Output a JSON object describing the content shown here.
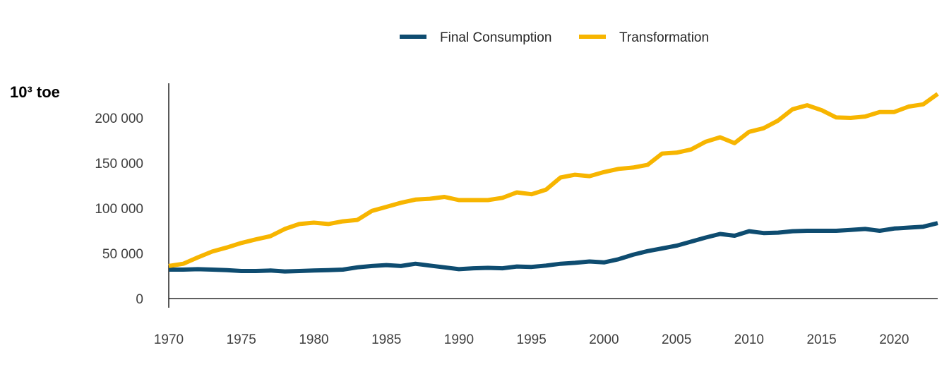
{
  "chart_data": {
    "type": "line",
    "unit_label": "10³ toe",
    "legend_placement": "top-center",
    "grid": false,
    "xlim": [
      1970,
      2023
    ],
    "ylim": [
      0,
      240000
    ],
    "x_ticks": [
      1970,
      1975,
      1980,
      1985,
      1990,
      1995,
      2000,
      2005,
      2010,
      2015,
      2020
    ],
    "x_tick_labels": [
      "1970",
      "1975",
      "1980",
      "1985",
      "1990",
      "1995",
      "2000",
      "2005",
      "2010",
      "2015",
      "2020"
    ],
    "y_ticks": [
      0,
      50000,
      100000,
      150000,
      200000
    ],
    "y_tick_labels": [
      "0",
      "50 000",
      "100 000",
      "150 000",
      "200 000"
    ],
    "x": [
      1970,
      1971,
      1972,
      1973,
      1974,
      1975,
      1976,
      1977,
      1978,
      1979,
      1980,
      1981,
      1982,
      1983,
      1984,
      1985,
      1986,
      1987,
      1988,
      1989,
      1990,
      1991,
      1992,
      1993,
      1994,
      1995,
      1996,
      1997,
      1998,
      1999,
      2000,
      2001,
      2002,
      2003,
      2004,
      2005,
      2006,
      2007,
      2008,
      2009,
      2010,
      2011,
      2012,
      2013,
      2014,
      2015,
      2016,
      2017,
      2018,
      2019,
      2020,
      2021,
      2022,
      2023
    ],
    "series": [
      {
        "name": "Final Consumption",
        "color": "#0E4C70",
        "values": [
          32000,
          32000,
          32500,
          32000,
          31500,
          30500,
          30500,
          31000,
          30000,
          30500,
          31000,
          31500,
          32000,
          34500,
          36000,
          37000,
          36000,
          38500,
          36500,
          34500,
          32500,
          33500,
          34000,
          33500,
          35500,
          35000,
          36500,
          38500,
          39500,
          41000,
          40000,
          43500,
          48500,
          52500,
          55500,
          58500,
          63000,
          67500,
          71500,
          69500,
          74500,
          72500,
          73000,
          74500,
          75000,
          75000,
          75000,
          76000,
          77000,
          75000,
          77500,
          78500,
          79500,
          83500
        ]
      },
      {
        "name": "Transformation",
        "color": "#F7B500",
        "values": [
          36000,
          38500,
          45500,
          52000,
          56500,
          61500,
          65500,
          69000,
          77000,
          82500,
          84000,
          82500,
          85500,
          87000,
          97000,
          101500,
          106000,
          109500,
          110500,
          112500,
          109000,
          109000,
          109000,
          111500,
          117500,
          115500,
          120500,
          134000,
          137000,
          135500,
          140000,
          143500,
          145000,
          148000,
          160500,
          161500,
          165000,
          173500,
          178500,
          172000,
          184500,
          188500,
          197000,
          209500,
          214000,
          208500,
          200500,
          200000,
          201500,
          206500,
          206500,
          212500,
          215000,
          226500
        ]
      }
    ]
  }
}
